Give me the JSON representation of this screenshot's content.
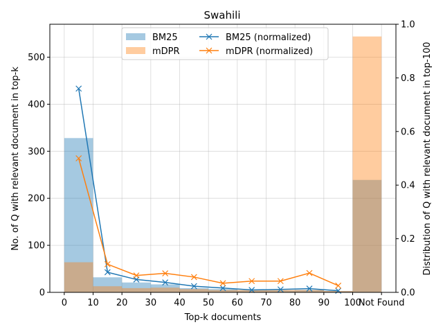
{
  "chart_data": {
    "type": "bar",
    "title": "Swahili",
    "xlabel": "Top-k documents",
    "ylabel": "No. of Q with relevant document in top-k",
    "y2label": "Distribution of Q with relevant document in top-100",
    "categories": [
      "0-10",
      "10-20",
      "20-30",
      "30-40",
      "40-50",
      "50-60",
      "60-70",
      "70-80",
      "80-90",
      "90-100",
      "Not Found"
    ],
    "x_tick_labels": [
      "0",
      "10",
      "20",
      "30",
      "40",
      "50",
      "60",
      "70",
      "80",
      "90",
      "100",
      "Not Found"
    ],
    "ylim": [
      0,
      570
    ],
    "y_ticks": [
      0,
      100,
      200,
      300,
      400,
      500
    ],
    "y2lim": [
      0,
      1.0
    ],
    "y2_ticks": [
      "0.0",
      "0.2",
      "0.4",
      "0.6",
      "0.8",
      "1.0"
    ],
    "grid": true,
    "legend_position": "top-center",
    "bar_series": [
      {
        "name": "BM25",
        "color": "#1f77b4",
        "values": [
          328,
          32,
          21,
          17,
          9,
          7,
          4,
          4,
          5,
          3,
          239
        ]
      },
      {
        "name": "mDPR",
        "color": "#ff7f0e",
        "values": [
          64,
          13,
          9,
          10,
          7,
          5,
          5,
          5,
          5,
          3,
          544
        ]
      }
    ],
    "line_series": [
      {
        "name": "BM25 (normalized)",
        "color": "#1f77b4",
        "x": [
          5,
          15,
          25,
          35,
          45,
          55,
          65,
          75,
          85,
          95
        ],
        "values": [
          0.76,
          0.075,
          0.048,
          0.037,
          0.023,
          0.016,
          0.009,
          0.011,
          0.014,
          0.006
        ]
      },
      {
        "name": "mDPR (normalized)",
        "color": "#ff7f0e",
        "x": [
          5,
          15,
          25,
          35,
          45,
          55,
          65,
          75,
          85,
          95
        ],
        "values": [
          0.5,
          0.105,
          0.063,
          0.071,
          0.057,
          0.034,
          0.042,
          0.042,
          0.072,
          0.025
        ]
      }
    ]
  }
}
